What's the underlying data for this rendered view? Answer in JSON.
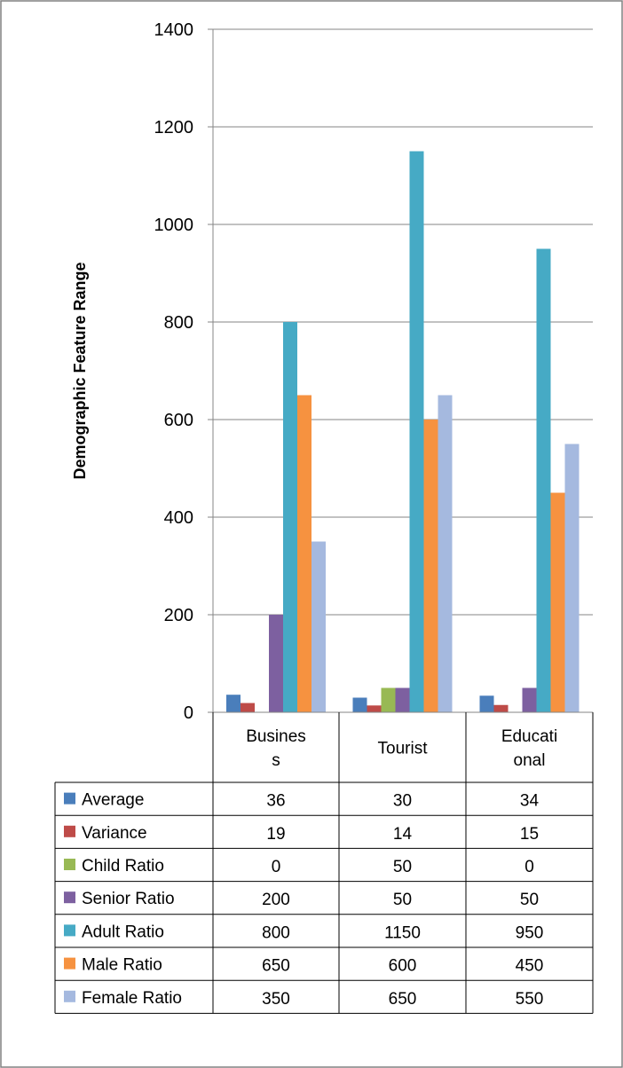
{
  "chart_data": {
    "type": "bar",
    "categories": [
      "Busines s",
      "Tourist",
      "Educati onal"
    ],
    "category_label_lines": [
      [
        "Busines",
        "s"
      ],
      [
        "Tourist"
      ],
      [
        "Educati",
        "onal"
      ]
    ],
    "ylabel": "Demographic Feature Range",
    "ylim": [
      0,
      1400
    ],
    "yticks": [
      0,
      200,
      400,
      600,
      800,
      1000,
      1200,
      1400
    ],
    "grid": true,
    "legend": "data-table",
    "series": [
      {
        "name": "Average",
        "values": [
          36,
          30,
          34
        ],
        "color": "#4a7ebb"
      },
      {
        "name": "Variance",
        "values": [
          19,
          14,
          15
        ],
        "color": "#be4b48"
      },
      {
        "name": "Child Ratio",
        "values": [
          0,
          50,
          0
        ],
        "color": "#98b954"
      },
      {
        "name": "Senior Ratio",
        "values": [
          200,
          50,
          50
        ],
        "color": "#7d60a0"
      },
      {
        "name": "Adult Ratio",
        "values": [
          800,
          1150,
          950
        ],
        "color": "#46aac5"
      },
      {
        "name": "Male Ratio",
        "values": [
          650,
          600,
          450
        ],
        "color": "#f69240"
      },
      {
        "name": "Female Ratio",
        "values": [
          350,
          650,
          550
        ],
        "color": "#a5b9df"
      }
    ]
  }
}
